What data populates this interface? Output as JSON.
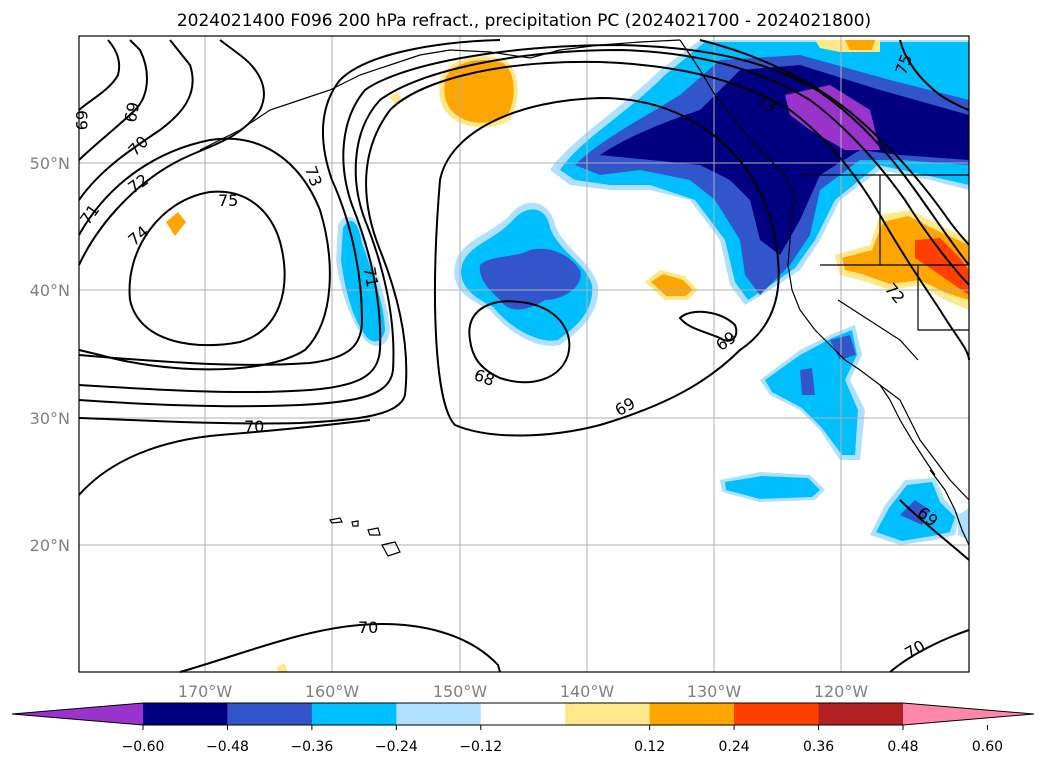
{
  "title": "2024021400 F096 200 hPa refract., precipitation PC (2024021700 - 2024021800)",
  "lon_labels": [
    "170°W",
    "160°W",
    "150°W",
    "140°W",
    "130°W",
    "120°W"
  ],
  "lat_labels": [
    "50°N",
    "40°N",
    "30°N",
    "20°N"
  ],
  "contour_labels": [
    "68",
    "69",
    "69",
    "69",
    "69",
    "69",
    "70",
    "70",
    "70",
    "71",
    "71",
    "72",
    "72",
    "73",
    "73",
    "74",
    "75",
    "75",
    "70"
  ],
  "colorbar": {
    "ticks": [
      "−0.60",
      "−0.48",
      "−0.36",
      "−0.24",
      "−0.12",
      "0.12",
      "0.24",
      "0.36",
      "0.48",
      "0.60"
    ],
    "colors": [
      "#9933cc",
      "#000080",
      "#3355cc",
      "#00bfff",
      "#b0e0ff",
      "#ffffff",
      "#ffe88a",
      "#ffa500",
      "#ff4000",
      "#b22222",
      "#ff88aa"
    ]
  },
  "palette": {
    "purple": "#9933cc",
    "navy": "#000080",
    "blue": "#3355cc",
    "deepskyblue": "#00bfff",
    "lightblue": "#b0e0ff",
    "yellow": "#ffe88a",
    "orange": "#ffa500",
    "red": "#ff4000"
  }
}
